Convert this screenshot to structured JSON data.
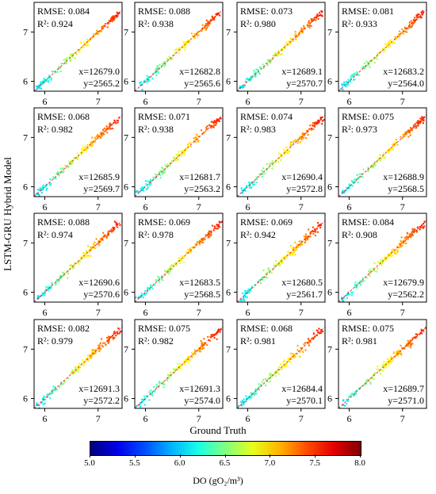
{
  "chart_data": {
    "type": "scatter",
    "grid_rows": 4,
    "grid_cols": 4,
    "xlabel": "Ground Truth",
    "ylabel": "LSTM-GRU Hybrid Model",
    "xlim": [
      5.8,
      7.45
    ],
    "ylim": [
      5.8,
      7.6
    ],
    "x_ticks": [
      6,
      7
    ],
    "y_ticks": [
      6,
      7
    ],
    "colormap": "jet",
    "colorbar": {
      "label": "DO (gO₂/m³)",
      "min": 5.0,
      "max": 8.0,
      "ticks": [
        "5.0",
        "5.5",
        "6.0",
        "6.5",
        "7.0",
        "7.5",
        "8.0"
      ],
      "position": "bottom"
    },
    "reference_line": {
      "style": "dashed",
      "color": "#ff0000",
      "slope": 1,
      "intercept": 0
    },
    "panels": [
      {
        "rmse": "RMSE: 0.084",
        "r2": "R²: 0.924",
        "sx": "x=12679.0",
        "sy": "y=2565.2",
        "seed": 11
      },
      {
        "rmse": "RMSE: 0.088",
        "r2": "R²: 0.938",
        "sx": "x=12682.8",
        "sy": "y=2565.6",
        "seed": 12
      },
      {
        "rmse": "RMSE: 0.073",
        "r2": "R²: 0.980",
        "sx": "x=12689.1",
        "sy": "y=2570.7",
        "seed": 13
      },
      {
        "rmse": "RMSE: 0.081",
        "r2": "R²: 0.933",
        "sx": "x=12683.2",
        "sy": "y=2564.0",
        "seed": 14
      },
      {
        "rmse": "RMSE: 0.068",
        "r2": "R²: 0.982",
        "sx": "x=12685.9",
        "sy": "y=2569.7",
        "seed": 15
      },
      {
        "rmse": "RMSE: 0.071",
        "r2": "R²: 0.938",
        "sx": "x=12681.7",
        "sy": "y=2563.2",
        "seed": 16
      },
      {
        "rmse": "RMSE: 0.074",
        "r2": "R²: 0.983",
        "sx": "x=12690.4",
        "sy": "y=2572.8",
        "seed": 17
      },
      {
        "rmse": "RMSE: 0.075",
        "r2": "R²: 0.973",
        "sx": "x=12688.9",
        "sy": "y=2568.5",
        "seed": 18
      },
      {
        "rmse": "RMSE: 0.088",
        "r2": "R²: 0.974",
        "sx": "x=12690.6",
        "sy": "y=2570.6",
        "seed": 19
      },
      {
        "rmse": "RMSE: 0.069",
        "r2": "R²: 0.978",
        "sx": "x=12683.5",
        "sy": "y=2568.5",
        "seed": 20
      },
      {
        "rmse": "RMSE: 0.069",
        "r2": "R²: 0.942",
        "sx": "x=12680.5",
        "sy": "y=2561.7",
        "seed": 21
      },
      {
        "rmse": "RMSE: 0.084",
        "r2": "R²: 0.908",
        "sx": "x=12679.9",
        "sy": "y=2562.2",
        "seed": 22
      },
      {
        "rmse": "RMSE: 0.082",
        "r2": "R²: 0.979",
        "sx": "x=12691.3",
        "sy": "y=2572.2",
        "seed": 23
      },
      {
        "rmse": "RMSE: 0.075",
        "r2": "R²: 0.982",
        "sx": "x=12691.3",
        "sy": "y=2574.0",
        "seed": 24
      },
      {
        "rmse": "RMSE: 0.068",
        "r2": "R²: 0.981",
        "sx": "x=12684.4",
        "sy": "y=2570.1",
        "seed": 25
      },
      {
        "rmse": "RMSE: 0.075",
        "r2": "R²: 0.981",
        "sx": "x=12689.7",
        "sy": "y=2571.0",
        "seed": 26
      }
    ]
  }
}
